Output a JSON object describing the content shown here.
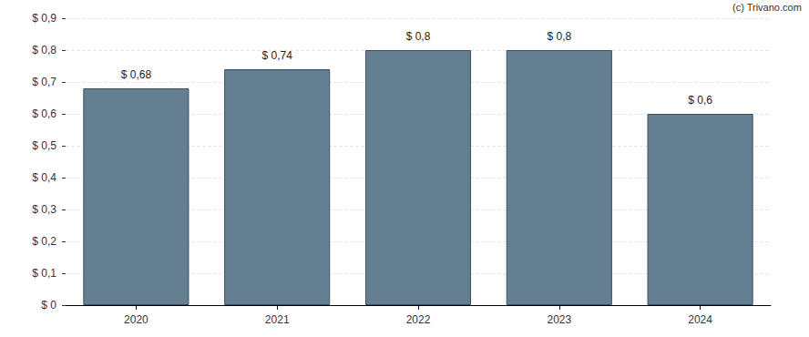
{
  "chart_data": {
    "type": "bar",
    "annotation": "(c) Trivano.com",
    "categories": [
      "2020",
      "2021",
      "2022",
      "2023",
      "2024"
    ],
    "values": [
      0.68,
      0.74,
      0.8,
      0.8,
      0.6
    ],
    "value_labels": [
      "$ 0,68",
      "$ 0,74",
      "$ 0,8",
      "$ 0,8",
      "$ 0,6"
    ],
    "data_labels": true,
    "color": "#647f91",
    "ylim": [
      0,
      0.9
    ],
    "yticks": [
      {
        "value": 0,
        "label": "$ 0"
      },
      {
        "value": 0.1,
        "label": "$ 0,1"
      },
      {
        "value": 0.2,
        "label": "$ 0,2"
      },
      {
        "value": 0.3,
        "label": "$ 0,3"
      },
      {
        "value": 0.4,
        "label": "$ 0,4"
      },
      {
        "value": 0.5,
        "label": "$ 0,5"
      },
      {
        "value": 0.6,
        "label": "$ 0,6"
      },
      {
        "value": 0.7,
        "label": "$ 0,7"
      },
      {
        "value": 0.8,
        "label": "$ 0,8"
      },
      {
        "value": 0.9,
        "label": "$ 0,9"
      }
    ],
    "grid": true
  }
}
